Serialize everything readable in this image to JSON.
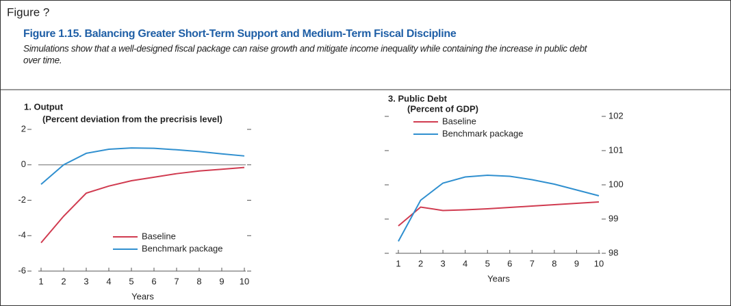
{
  "figure_label": "Figure ?",
  "title": "Figure 1.15. Balancing Greater Short-Term Support and Medium-Term Fiscal Discipline",
  "subtitle_lines": [
    "Simulations show that a well-designed fiscal package can raise growth and mitigate income inequality while containing the increase in public debt",
    "over time."
  ],
  "chart_data": [
    {
      "type": "line",
      "title": "1. Output",
      "subtitle": "(Percent deviation from the precrisis level)",
      "x_label": "Years",
      "x": [
        1,
        2,
        3,
        4,
        5,
        6,
        7,
        8,
        9,
        10
      ],
      "xlim": [
        1,
        10
      ],
      "xticks": [
        1,
        2,
        3,
        4,
        5,
        6,
        7,
        8,
        9,
        10
      ],
      "ylim": [
        -6,
        2
      ],
      "yticks": [
        -6,
        -4,
        -2,
        0,
        2
      ],
      "y_axis_side": "left",
      "zero_line": true,
      "grid": false,
      "legend": "lower center",
      "series": [
        {
          "name": "Baseline",
          "color": "#d03a4f",
          "values": [
            -4.4,
            -2.9,
            -1.6,
            -1.2,
            -0.9,
            -0.7,
            -0.5,
            -0.35,
            -0.25,
            -0.15
          ]
        },
        {
          "name": "Benchmark package",
          "color": "#2f8fcf",
          "values": [
            -1.1,
            0.0,
            0.65,
            0.88,
            0.95,
            0.93,
            0.85,
            0.75,
            0.62,
            0.5
          ]
        }
      ]
    },
    {
      "type": "line",
      "title": "3. Public Debt",
      "subtitle": "(Percent of GDP)",
      "x_label": "Years",
      "x": [
        1,
        2,
        3,
        4,
        5,
        6,
        7,
        8,
        9,
        10
      ],
      "xlim": [
        1,
        10
      ],
      "xticks": [
        1,
        2,
        3,
        4,
        5,
        6,
        7,
        8,
        9,
        10
      ],
      "ylim": [
        98,
        102
      ],
      "yticks": [
        98,
        99,
        100,
        101,
        102
      ],
      "y_axis_side": "right",
      "zero_line": false,
      "grid": false,
      "legend": "upper left",
      "series": [
        {
          "name": "Baseline",
          "color": "#d03a4f",
          "values": [
            98.8,
            99.35,
            99.25,
            99.27,
            99.3,
            99.34,
            99.38,
            99.42,
            99.46,
            99.5
          ]
        },
        {
          "name": "Benchmark package",
          "color": "#2f8fcf",
          "values": [
            98.35,
            99.55,
            100.05,
            100.23,
            100.28,
            100.25,
            100.15,
            100.02,
            99.85,
            99.68
          ]
        }
      ]
    }
  ]
}
